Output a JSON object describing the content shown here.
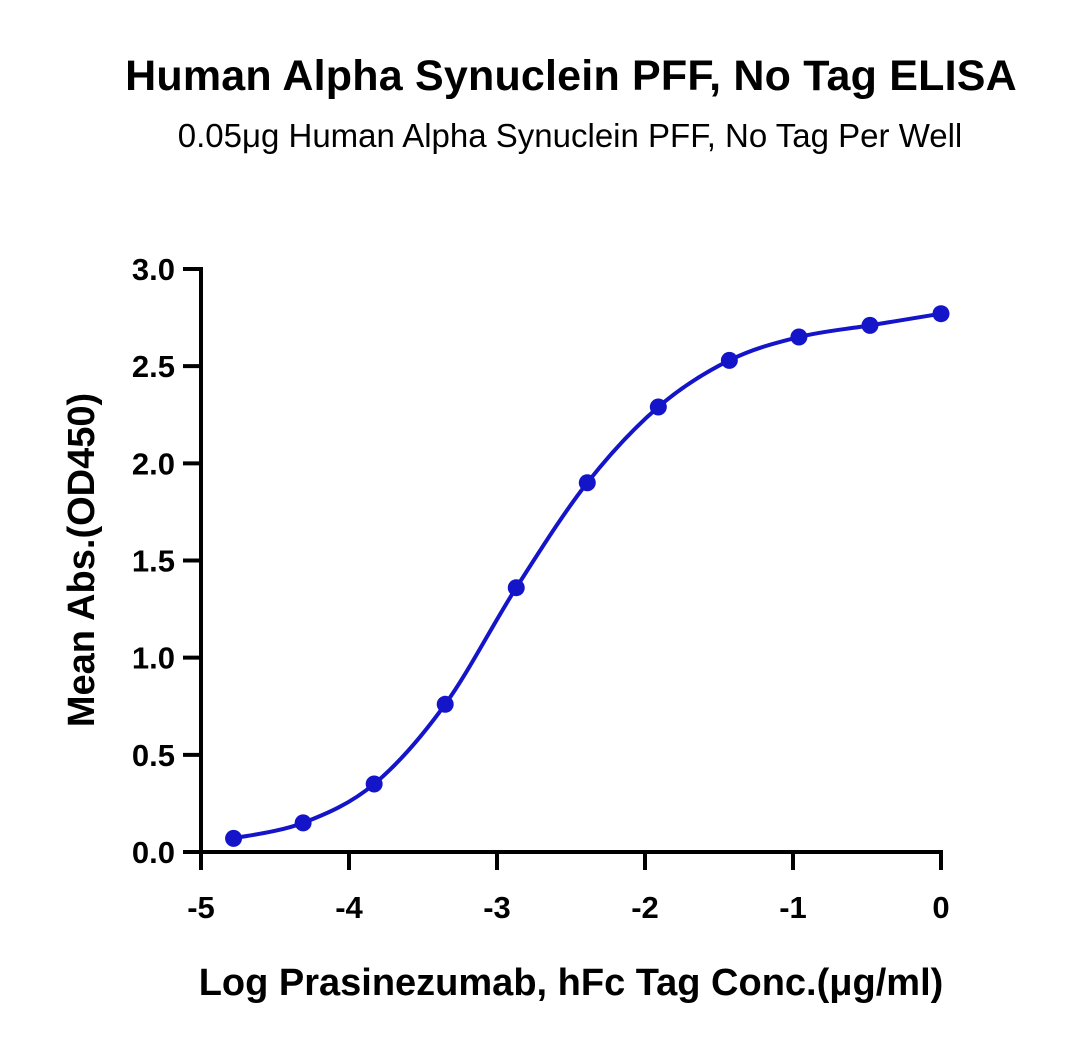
{
  "chart_data": {
    "type": "scatter",
    "title": "Human Alpha Synuclein PFF, No Tag ELISA",
    "subtitle": "0.05μg Human Alpha Synuclein PFF, No Tag Per Well",
    "xlabel": "Log Prasinezumab, hFc Tag Conc.(μg/ml)",
    "ylabel": "Mean Abs.(OD450)",
    "xlim": [
      -5,
      0
    ],
    "ylim": [
      0,
      3.0
    ],
    "x_ticks": [
      "-5",
      "-4",
      "-3",
      "-2",
      "-1",
      "0"
    ],
    "y_ticks": [
      "0.0",
      "0.5",
      "1.0",
      "1.5",
      "2.0",
      "2.5",
      "3.0"
    ],
    "grid": false,
    "series": [
      {
        "color": "#1414c8",
        "x": [
          -4.78,
          -4.31,
          -3.83,
          -3.35,
          -2.87,
          -2.39,
          -1.91,
          -1.43,
          -0.96,
          -0.48,
          0.0
        ],
        "y": [
          0.07,
          0.15,
          0.35,
          0.76,
          1.36,
          1.9,
          2.29,
          2.53,
          2.65,
          2.71,
          2.77
        ],
        "fit": "four-parameter logistic"
      }
    ]
  }
}
